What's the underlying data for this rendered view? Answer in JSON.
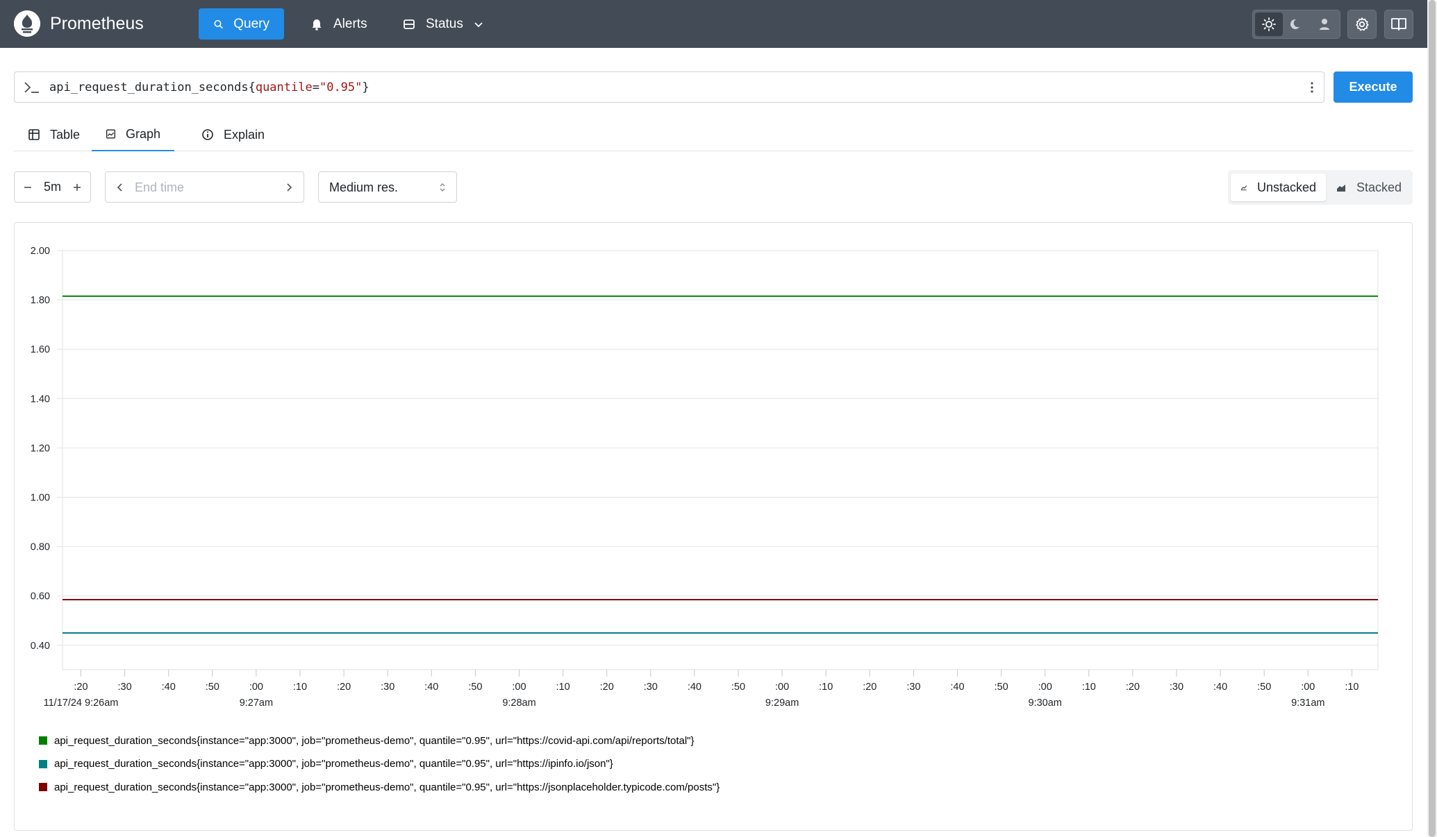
{
  "app": {
    "title": "Prometheus"
  },
  "nav": {
    "query_label": "Query",
    "alerts_label": "Alerts",
    "status_label": "Status"
  },
  "query": {
    "metric": "api_request_duration_seconds",
    "open_brace": "{",
    "label_name": "quantile",
    "equals": "=",
    "label_value": "\"0.95\"",
    "close_brace": "}"
  },
  "execute_label": "Execute",
  "tabs": {
    "table": "Table",
    "graph": "Graph",
    "explain": "Explain"
  },
  "controls": {
    "range": "5m",
    "end_time_placeholder": "End time",
    "resolution": "Medium res.",
    "unstacked": "Unstacked",
    "stacked": "Stacked"
  },
  "colors": {
    "accent": "#228be6",
    "navbar": "#434b56"
  },
  "chart_data": {
    "type": "line",
    "ylim": [
      0.4,
      2.0
    ],
    "yticks": [
      "2.00",
      "1.80",
      "1.60",
      "1.40",
      "1.20",
      "1.00",
      "0.80",
      "0.60",
      "0.40"
    ],
    "xticks": [
      ":20",
      ":30",
      ":40",
      ":50",
      ":00",
      ":10",
      ":20",
      ":30",
      ":40",
      ":50",
      ":00",
      ":10",
      ":20",
      ":30",
      ":40",
      ":50",
      ":00",
      ":10",
      ":20",
      ":30",
      ":40",
      ":50",
      ":00",
      ":10",
      ":20",
      ":30",
      ":40",
      ":50",
      ":00",
      ":10"
    ],
    "xmajor": [
      {
        "tick": 0,
        "label": "11/17/24 9:26am"
      },
      {
        "tick": 4,
        "label": "9:27am"
      },
      {
        "tick": 10,
        "label": "9:28am"
      },
      {
        "tick": 16,
        "label": "9:29am"
      },
      {
        "tick": 22,
        "label": "9:30am"
      },
      {
        "tick": 28,
        "label": "9:31am"
      }
    ],
    "series": [
      {
        "name": "api_request_duration_seconds{instance=\"app:3000\", job=\"prometheus-demo\", quantile=\"0.95\", url=\"https://covid-api.com/api/reports/total\"}",
        "color": "#008000",
        "value": 1.815
      },
      {
        "name": "api_request_duration_seconds{instance=\"app:3000\", job=\"prometheus-demo\", quantile=\"0.95\", url=\"https://ipinfo.io/json\"}",
        "color": "#008080",
        "value": 0.45
      },
      {
        "name": "api_request_duration_seconds{instance=\"app:3000\", job=\"prometheus-demo\", quantile=\"0.95\", url=\"https://jsonplaceholder.typicode.com/posts\"}",
        "color": "#800000",
        "value": 0.585
      }
    ]
  }
}
